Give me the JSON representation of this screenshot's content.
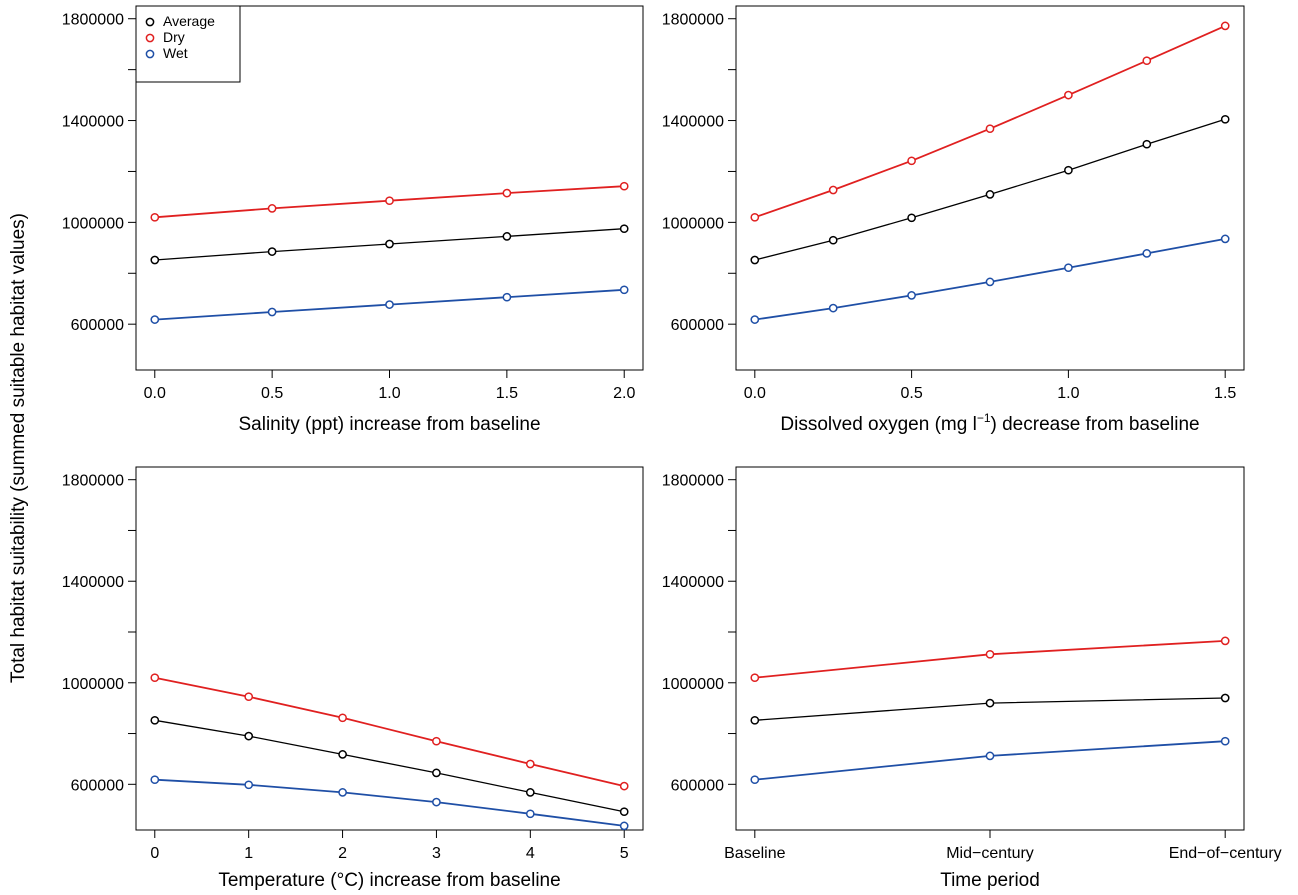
{
  "ylabel": "Total habitat suitability (summed suitable habitat values)",
  "colors": {
    "Average": "#000000",
    "Dry": "#e02020",
    "Wet": "#1f4fa6"
  },
  "legend": [
    "Average",
    "Dry",
    "Wet"
  ],
  "chart_data": [
    {
      "type": "line",
      "xlabel": "Salinity (ppt) increase from baseline",
      "x": [
        0,
        0.5,
        1.0,
        1.5,
        2.0
      ],
      "xticks": [
        0,
        0.5,
        1.0,
        1.5,
        2.0
      ],
      "xtick_labels": [
        "0.0",
        "0.5",
        "1.0",
        "1.5",
        "2.0"
      ],
      "xlim": [
        -0.08,
        2.08
      ],
      "ylim": [
        420000,
        1850000
      ],
      "yticks": [
        600000,
        1000000,
        1400000,
        1800000
      ],
      "legend_placement": "top-left",
      "series": [
        {
          "name": "Average",
          "values": [
            852000,
            885000,
            915000,
            945000,
            975000
          ]
        },
        {
          "name": "Dry",
          "values": [
            1020000,
            1055000,
            1085000,
            1115000,
            1142000
          ]
        },
        {
          "name": "Wet",
          "values": [
            618000,
            648000,
            677000,
            706000,
            735000
          ]
        }
      ]
    },
    {
      "type": "line",
      "xlabel_pre": "Dissolved oxygen (mg l",
      "xlabel_sup": "−1",
      "xlabel_post": ") decrease from baseline",
      "x": [
        0,
        0.25,
        0.5,
        0.75,
        1.0,
        1.25,
        1.5
      ],
      "xticks": [
        0,
        0.5,
        1.0,
        1.5
      ],
      "xtick_labels": [
        "0.0",
        "0.5",
        "1.0",
        "1.5"
      ],
      "xlim": [
        -0.06,
        1.56
      ],
      "ylim": [
        420000,
        1850000
      ],
      "yticks": [
        600000,
        1000000,
        1400000,
        1800000
      ],
      "series": [
        {
          "name": "Average",
          "values": [
            852000,
            930000,
            1018000,
            1110000,
            1205000,
            1307000,
            1405000
          ]
        },
        {
          "name": "Dry",
          "values": [
            1020000,
            1127000,
            1242000,
            1368000,
            1500000,
            1635000,
            1772000
          ]
        },
        {
          "name": "Wet",
          "values": [
            618000,
            663000,
            713000,
            766000,
            822000,
            878000,
            935000
          ]
        }
      ]
    },
    {
      "type": "line",
      "xlabel": "Temperature (°C) increase from baseline",
      "x": [
        0,
        1,
        2,
        3,
        4,
        5
      ],
      "xticks": [
        0,
        1,
        2,
        3,
        4,
        5
      ],
      "xtick_labels": [
        "0",
        "1",
        "2",
        "3",
        "4",
        "5"
      ],
      "xlim": [
        -0.2,
        5.2
      ],
      "ylim": [
        420000,
        1850000
      ],
      "yticks": [
        600000,
        1000000,
        1400000,
        1800000
      ],
      "series": [
        {
          "name": "Average",
          "values": [
            852000,
            790000,
            718000,
            645000,
            568000,
            492000
          ]
        },
        {
          "name": "Dry",
          "values": [
            1020000,
            945000,
            862000,
            770000,
            680000,
            593000
          ]
        },
        {
          "name": "Wet",
          "values": [
            618000,
            598000,
            568000,
            530000,
            484000,
            436000
          ]
        }
      ]
    },
    {
      "type": "line",
      "xlabel": "Time period",
      "x": [
        0,
        1,
        2
      ],
      "xticks": [
        0,
        1,
        2
      ],
      "xtick_labels": [
        "Baseline",
        "Mid−century",
        "End−of−century"
      ],
      "xlim": [
        -0.08,
        2.08
      ],
      "ylim": [
        420000,
        1850000
      ],
      "yticks": [
        600000,
        1000000,
        1400000,
        1800000
      ],
      "series": [
        {
          "name": "Average",
          "values": [
            852000,
            920000,
            940000
          ]
        },
        {
          "name": "Dry",
          "values": [
            1020000,
            1112000,
            1165000
          ]
        },
        {
          "name": "Wet",
          "values": [
            618000,
            712000,
            770000
          ]
        }
      ]
    }
  ]
}
